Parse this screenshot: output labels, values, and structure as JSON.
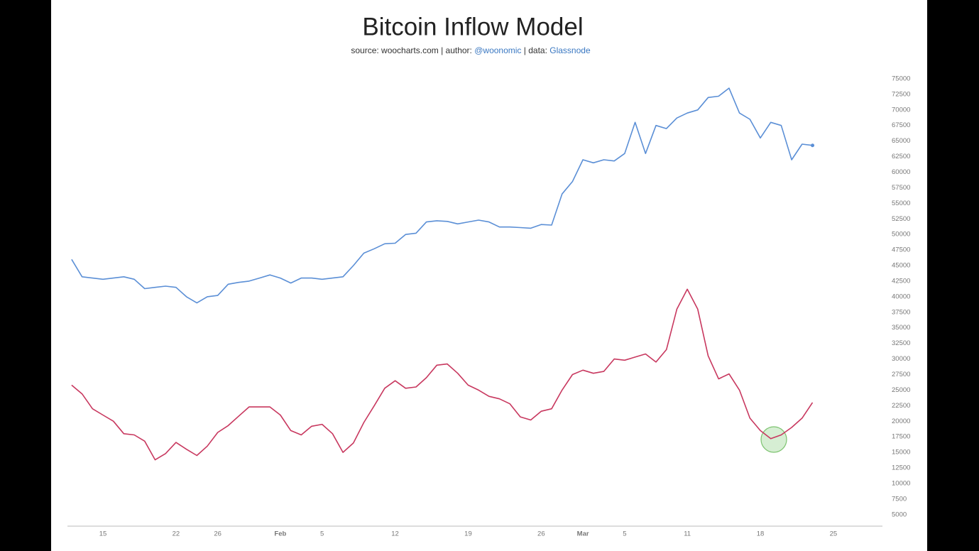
{
  "chart_data": {
    "type": "line",
    "title": "Bitcoin Inflow Model",
    "subtitle": [
      "source: woocharts.com | author: ",
      "@woonomic",
      " | data: ",
      "Glassnode"
    ],
    "x": [
      12,
      13,
      14,
      15,
      16,
      17,
      18,
      19,
      20,
      21,
      22,
      23,
      24,
      25,
      26,
      27,
      28,
      29,
      30,
      31,
      32,
      33,
      34,
      35,
      36,
      37,
      38,
      39,
      40,
      41,
      42,
      43,
      44,
      45,
      46,
      47,
      48,
      49,
      50,
      51,
      52,
      53,
      54,
      55,
      56,
      57,
      58,
      59,
      60,
      61,
      62,
      63,
      64,
      65,
      66,
      67,
      68,
      69,
      70,
      71,
      72,
      73,
      74,
      75,
      76,
      77,
      78,
      79,
      80,
      81,
      82,
      83
    ],
    "series": [
      {
        "color": "#5b8fd6",
        "values": [
          46000,
          43200,
          43000,
          42800,
          43000,
          43200,
          42800,
          41300,
          41500,
          41700,
          41500,
          40000,
          39000,
          40000,
          40200,
          42000,
          42300,
          42500,
          43000,
          43500,
          43000,
          42200,
          43000,
          43000,
          42800,
          43000,
          43200,
          45000,
          47000,
          47700,
          48500,
          48600,
          50000,
          50200,
          52000,
          52200,
          52100,
          51700,
          52000,
          52300,
          52000,
          51200,
          51200,
          51100,
          51000,
          51600,
          51500,
          56500,
          58500,
          62000,
          61500,
          62000,
          61800,
          63000,
          68000,
          63000,
          67500,
          67000,
          68700,
          69500,
          70000,
          72000,
          72200,
          73500,
          69500,
          68500,
          65500,
          68000,
          67500,
          62000,
          64500,
          64300
        ]
      },
      {
        "color": "#c8385f",
        "values": [
          25800,
          24400,
          22000,
          21000,
          20000,
          18000,
          17800,
          16800,
          13800,
          14800,
          16600,
          15500,
          14500,
          16000,
          18200,
          19300,
          20800,
          22300,
          22300,
          22300,
          21000,
          18500,
          17800,
          19200,
          19500,
          18000,
          15000,
          16500,
          19800,
          22500,
          25300,
          26500,
          25300,
          25500,
          27000,
          29000,
          29200,
          27700,
          25800,
          25000,
          24000,
          23600,
          22800,
          20700,
          20200,
          21600,
          22000,
          25000,
          27500,
          28200,
          27700,
          28000,
          30000,
          29800,
          30300,
          30800,
          29500,
          31500,
          38000,
          41200,
          38000,
          30500,
          26800,
          27600,
          25000,
          20500,
          18500,
          17200,
          17800,
          19000,
          20500,
          23000
        ]
      }
    ],
    "xlim": [
      11.6,
      89.7
    ],
    "xticks": [
      15,
      22,
      26,
      {
        "value": 32,
        "label": "Feb"
      },
      {
        "value": 36,
        "label": "5"
      },
      {
        "value": 43,
        "label": "12"
      },
      {
        "value": 50,
        "label": "19"
      },
      {
        "value": 57,
        "label": "26"
      },
      {
        "value": 61,
        "label": "Mar"
      },
      {
        "value": 65,
        "label": "5"
      },
      {
        "value": 71,
        "label": "11"
      },
      {
        "value": 78,
        "label": "18"
      },
      {
        "value": 85,
        "label": "25"
      }
    ],
    "ylim": [
      3150,
      76250
    ],
    "yticks": [
      5000,
      7500,
      10000,
      12500,
      15000,
      17500,
      20000,
      22500,
      25000,
      27500,
      30000,
      32500,
      35000,
      37500,
      40000,
      42500,
      45000,
      47500,
      50000,
      52500,
      55000,
      57500,
      60000,
      62500,
      65000,
      67500,
      70000,
      72500,
      75000
    ]
  }
}
